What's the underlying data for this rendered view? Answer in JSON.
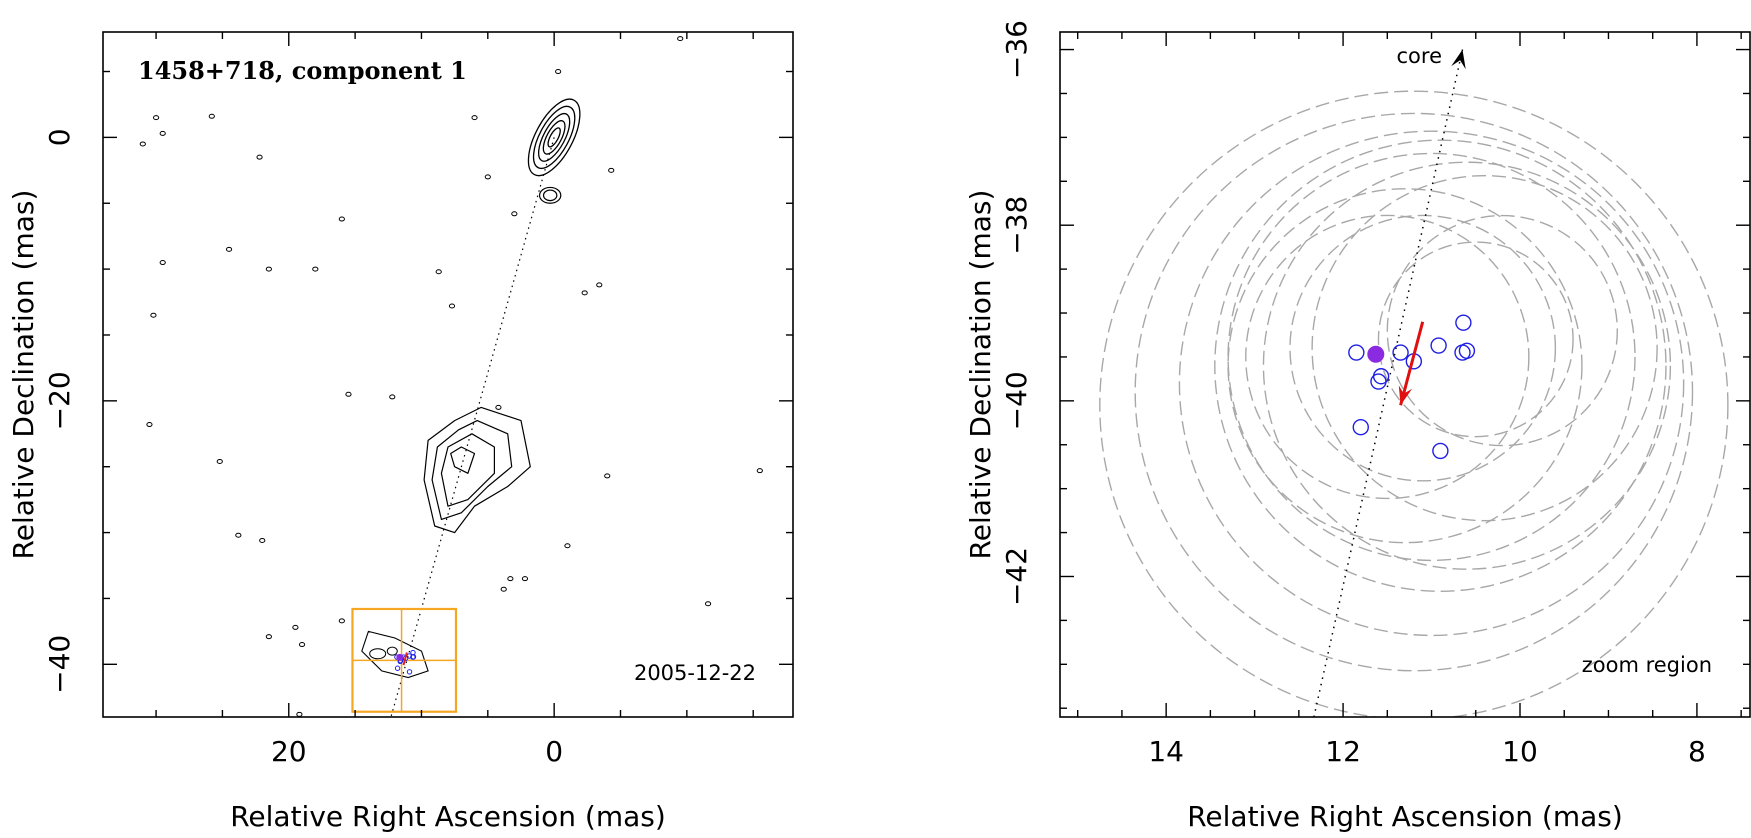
{
  "chart_data": [
    {
      "type": "contour",
      "title": "1458+718, component 1",
      "epoch": "2005-12-22",
      "xlabel": "Relative Right Ascension (mas)",
      "ylabel": "Relative Declination (mas)",
      "xlim": [
        34,
        -18
      ],
      "ylim": [
        -44,
        8
      ],
      "x_ticks": [
        {
          "value": 20,
          "label": "20"
        },
        {
          "value": 0,
          "label": "0"
        }
      ],
      "y_ticks": [
        {
          "value": 0,
          "label": "0"
        },
        {
          "value": -20,
          "label": "−20"
        },
        {
          "value": -40,
          "label": "−40"
        }
      ],
      "jet_axis": {
        "from": [
          0,
          0
        ],
        "to": [
          12.3,
          -44
        ]
      },
      "contours": {
        "core": {
          "x": 0,
          "y": 0,
          "levels": [
            {
              "rx": 1.4,
              "ry": 3.2
            },
            {
              "rx": 1.1,
              "ry": 2.6
            },
            {
              "rx": 0.8,
              "ry": 2.0
            },
            {
              "rx": 0.55,
              "ry": 1.4
            },
            {
              "rx": 0.3,
              "ry": 0.8
            }
          ]
        },
        "knot": {
          "x": 0.3,
          "y": -4.4,
          "levels": [
            {
              "rx": 0.8,
              "ry": 0.6
            },
            {
              "rx": 0.5,
              "ry": 0.4
            }
          ]
        },
        "jet_blob": [
          [
            [
              5.5,
              -20.5
            ],
            [
              2.5,
              -21.5
            ],
            [
              1.8,
              -25
            ],
            [
              3.5,
              -26.5
            ],
            [
              6,
              -28
            ],
            [
              7.5,
              -30
            ],
            [
              9,
              -29.5
            ],
            [
              9.8,
              -26
            ],
            [
              9.5,
              -23
            ],
            [
              7.5,
              -21.5
            ]
          ],
          [
            [
              5.8,
              -21.5
            ],
            [
              3.5,
              -22.5
            ],
            [
              3.2,
              -25
            ],
            [
              5,
              -26.5
            ],
            [
              7,
              -28.5
            ],
            [
              8.5,
              -29
            ],
            [
              9.2,
              -26
            ],
            [
              8.8,
              -23.5
            ],
            [
              7.2,
              -22.2
            ]
          ],
          [
            [
              6.2,
              -22.5
            ],
            [
              4.5,
              -23.5
            ],
            [
              4.5,
              -25.5
            ],
            [
              6.5,
              -27.5
            ],
            [
              8,
              -28
            ],
            [
              8.5,
              -25.5
            ],
            [
              8,
              -23.5
            ]
          ],
          [
            [
              7,
              -23.5
            ],
            [
              6,
              -24
            ],
            [
              6.5,
              -25.5
            ],
            [
              7.5,
              -25
            ],
            [
              7.8,
              -24
            ]
          ]
        ],
        "inner_component": [
          [
            [
              14,
              -37.5
            ],
            [
              12,
              -38
            ],
            [
              10,
              -39
            ],
            [
              9.5,
              -40.5
            ],
            [
              11,
              -41
            ],
            [
              13,
              -40.5
            ],
            [
              14.5,
              -39
            ]
          ]
        ],
        "noise": [
          [
            30,
            1.5
          ],
          [
            31,
            -0.5
          ],
          [
            29.5,
            0.3
          ],
          [
            25.8,
            1.6
          ],
          [
            22.2,
            -1.5
          ],
          [
            16,
            -6.2
          ],
          [
            6,
            1.5
          ],
          [
            -0.3,
            5
          ],
          [
            -9.5,
            7.5
          ],
          [
            5,
            -3
          ],
          [
            3,
            -5.8
          ],
          [
            -4.3,
            -2.5
          ],
          [
            29.5,
            -9.5
          ],
          [
            24.5,
            -8.5
          ],
          [
            21.5,
            -10
          ],
          [
            18,
            -10
          ],
          [
            8.7,
            -10.2
          ],
          [
            7.7,
            -12.8
          ],
          [
            -3.4,
            -11.2
          ],
          [
            -2.3,
            -11.8
          ],
          [
            30.2,
            -13.5
          ],
          [
            15.5,
            -19.5
          ],
          [
            12.2,
            -19.7
          ],
          [
            4.2,
            -20.5
          ],
          [
            30.5,
            -21.8
          ],
          [
            25.2,
            -24.6
          ],
          [
            -4,
            -25.7
          ],
          [
            -15.5,
            -25.3
          ],
          [
            23.8,
            -30.2
          ],
          [
            22,
            -30.6
          ],
          [
            -1,
            -31
          ],
          [
            3.3,
            -33.5
          ],
          [
            2.2,
            -33.5
          ],
          [
            3.8,
            -34.3
          ],
          [
            19.5,
            -37.2
          ],
          [
            21.5,
            -37.9
          ],
          [
            19,
            -38.5
          ],
          [
            -11.6,
            -35.4
          ],
          [
            16,
            -36.7
          ],
          [
            19.2,
            -43.8
          ]
        ]
      },
      "components": {
        "filled": [
          {
            "x": 11.63,
            "y": -39.47
          }
        ],
        "open": [
          {
            "x": 11.85,
            "y": -39.45
          },
          {
            "x": 11.35,
            "y": -39.45
          },
          {
            "x": 11.2,
            "y": -39.55
          },
          {
            "x": 10.92,
            "y": -39.37
          },
          {
            "x": 10.64,
            "y": -39.11
          },
          {
            "x": 10.65,
            "y": -39.45
          },
          {
            "x": 10.6,
            "y": -39.43
          },
          {
            "x": 11.57,
            "y": -39.72
          },
          {
            "x": 11.6,
            "y": -39.78
          },
          {
            "x": 11.8,
            "y": -40.3
          },
          {
            "x": 10.9,
            "y": -40.57
          }
        ]
      },
      "zoom_box": {
        "x_range": [
          15.2,
          7.4
        ],
        "y_range": [
          -35.8,
          -43.6
        ],
        "cross_x": 11.5,
        "cross_y": -39.7
      }
    },
    {
      "type": "scatter",
      "title": "zoom region",
      "xlabel": "Relative Right Ascension (mas)",
      "ylabel": "Relative Declination (mas)",
      "xlim": [
        15.2,
        7.4
      ],
      "ylim": [
        -43.6,
        -35.8
      ],
      "x_ticks": [
        {
          "value": 14,
          "label": "14"
        },
        {
          "value": 12,
          "label": "12"
        },
        {
          "value": 10,
          "label": "10"
        },
        {
          "value": 8,
          "label": "8"
        }
      ],
      "y_ticks": [
        {
          "value": -36,
          "label": "−36"
        },
        {
          "value": -38,
          "label": "−38"
        },
        {
          "value": -40,
          "label": "−40"
        },
        {
          "value": -42,
          "label": "−42"
        }
      ],
      "core_label": "core",
      "core_arrow": {
        "from": [
          12.33,
          -43.6
        ],
        "to": [
          10.65,
          -36.0
        ]
      },
      "motion_vector": {
        "from": [
          11.1,
          -39.1
        ],
        "to": [
          11.35,
          -40.05
        ]
      },
      "filled_points": [
        {
          "x": 11.63,
          "y": -39.47
        }
      ],
      "open_points": [
        {
          "x": 11.85,
          "y": -39.45
        },
        {
          "x": 11.35,
          "y": -39.45
        },
        {
          "x": 11.2,
          "y": -39.55
        },
        {
          "x": 10.92,
          "y": -39.37
        },
        {
          "x": 10.64,
          "y": -39.11
        },
        {
          "x": 10.65,
          "y": -39.45
        },
        {
          "x": 10.6,
          "y": -39.43
        },
        {
          "x": 11.57,
          "y": -39.72
        },
        {
          "x": 11.6,
          "y": -39.78
        },
        {
          "x": 11.8,
          "y": -40.3
        },
        {
          "x": 10.9,
          "y": -40.57
        }
      ],
      "uncertainty_circles": [
        {
          "cx": 11.5,
          "cy": -39.5,
          "r": 1.6
        },
        {
          "cx": 11.1,
          "cy": -39.4,
          "r": 1.5
        },
        {
          "cx": 11.3,
          "cy": -39.6,
          "r": 2.0
        },
        {
          "cx": 11.0,
          "cy": -39.5,
          "r": 2.3
        },
        {
          "cx": 10.9,
          "cy": -39.6,
          "r": 2.55
        },
        {
          "cx": 11.0,
          "cy": -39.8,
          "r": 2.85
        },
        {
          "cx": 11.2,
          "cy": -39.9,
          "r": 3.15
        },
        {
          "cx": 11.2,
          "cy": -40.05,
          "r": 3.55
        },
        {
          "cx": 10.2,
          "cy": -39.2,
          "r": 1.3
        },
        {
          "cx": 10.5,
          "cy": -39.3,
          "r": 1.1
        },
        {
          "cx": 10.4,
          "cy": -39.4,
          "r": 1.95
        },
        {
          "cx": 10.6,
          "cy": -39.6,
          "r": 2.3
        }
      ]
    }
  ]
}
